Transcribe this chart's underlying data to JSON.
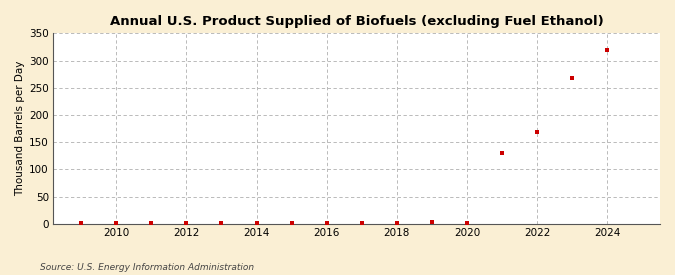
{
  "title": "Annual U.S. Product Supplied of Biofuels (excluding Fuel Ethanol)",
  "ylabel": "Thousand Barrels per Day",
  "source_text": "Source: U.S. Energy Information Administration",
  "background_color": "#faefd4",
  "plot_background_color": "#ffffff",
  "marker_color": "#cc0000",
  "marker": "s",
  "marker_size": 3,
  "xlim": [
    2008.2,
    2025.5
  ],
  "ylim": [
    0,
    350
  ],
  "yticks": [
    0,
    50,
    100,
    150,
    200,
    250,
    300,
    350
  ],
  "xticks": [
    2010,
    2012,
    2014,
    2016,
    2018,
    2020,
    2022,
    2024
  ],
  "years": [
    2009,
    2010,
    2011,
    2012,
    2013,
    2014,
    2015,
    2016,
    2017,
    2018,
    2019,
    2020,
    2021,
    2022,
    2023,
    2024
  ],
  "values": [
    1,
    1,
    1,
    1,
    2,
    2,
    2,
    2,
    2,
    2,
    3,
    2,
    130,
    168,
    268,
    320
  ]
}
